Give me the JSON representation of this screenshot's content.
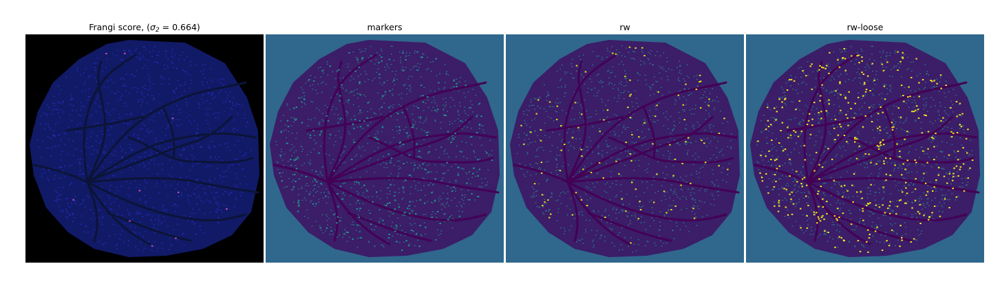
{
  "panels": [
    {
      "title_prefix": "Frangi score, (",
      "sigma_symbol": "σ",
      "sigma_sub": "2",
      "title_suffix": " = 0.664)",
      "background": "#000000",
      "blob_fill": "#111a66",
      "vessel_color": "#0c1438",
      "speckle_color": "#2a2fd0",
      "highlight_color": "#d04cc4",
      "highlight_density": 0.01
    },
    {
      "title": "markers",
      "background": "#30678c",
      "blob_fill": "#3b1d68",
      "vessel_color": "#440154",
      "speckle_color": "#2a8a8c",
      "highlight_color": "#21918c",
      "highlight_density": 0.25
    },
    {
      "title": "rw",
      "background": "#30678c",
      "blob_fill": "#3b1d68",
      "vessel_color": "#440154",
      "speckle_color": "#2a8a8c",
      "highlight_color": "#dde318",
      "highlight_density": 0.12
    },
    {
      "title": "rw-loose",
      "background": "#30678c",
      "blob_fill": "#3b1d68",
      "vessel_color": "#440154",
      "speckle_color": "#2a8a8c",
      "highlight_color": "#f2e51d",
      "highlight_density": 0.45
    }
  ]
}
